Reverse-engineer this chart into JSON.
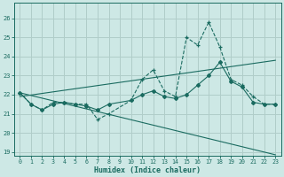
{
  "xlabel": "Humidex (Indice chaleur)",
  "ylabel": "",
  "bg_color": "#cde8e5",
  "grid_color": "#b0cdc9",
  "line_color": "#1a6b60",
  "xlim": [
    -0.5,
    23.5
  ],
  "ylim": [
    18.8,
    26.8
  ],
  "xticks": [
    0,
    1,
    2,
    3,
    4,
    5,
    6,
    7,
    8,
    9,
    10,
    11,
    12,
    13,
    14,
    15,
    16,
    17,
    18,
    19,
    20,
    21,
    22,
    23
  ],
  "yticks": [
    19,
    20,
    21,
    22,
    23,
    24,
    25,
    26
  ],
  "series1_x": [
    0,
    1,
    2,
    3,
    4,
    5,
    6,
    7,
    8,
    10,
    11,
    12,
    13,
    14,
    15,
    16,
    17,
    18,
    19,
    20,
    21,
    22,
    23
  ],
  "series1_y": [
    22.1,
    21.5,
    21.2,
    21.6,
    21.6,
    21.5,
    21.5,
    20.7,
    21.0,
    21.7,
    22.8,
    23.3,
    22.2,
    21.9,
    25.0,
    24.6,
    25.8,
    24.5,
    22.8,
    22.5,
    21.9,
    21.5,
    21.5
  ],
  "series2_x": [
    0,
    1,
    2,
    3,
    4,
    5,
    6,
    7,
    8,
    10,
    11,
    12,
    13,
    14,
    15,
    16,
    17,
    18,
    19,
    20,
    21,
    22,
    23
  ],
  "series2_y": [
    22.1,
    21.5,
    21.2,
    21.5,
    21.6,
    21.5,
    21.4,
    21.2,
    21.5,
    21.7,
    22.0,
    22.2,
    21.9,
    21.8,
    22.0,
    22.5,
    23.0,
    23.7,
    22.7,
    22.4,
    21.6,
    21.5,
    21.5
  ],
  "series3_x": [
    0,
    23
  ],
  "series3_y": [
    21.9,
    23.8
  ],
  "series4_x": [
    0,
    23
  ],
  "series4_y": [
    22.1,
    18.85
  ]
}
